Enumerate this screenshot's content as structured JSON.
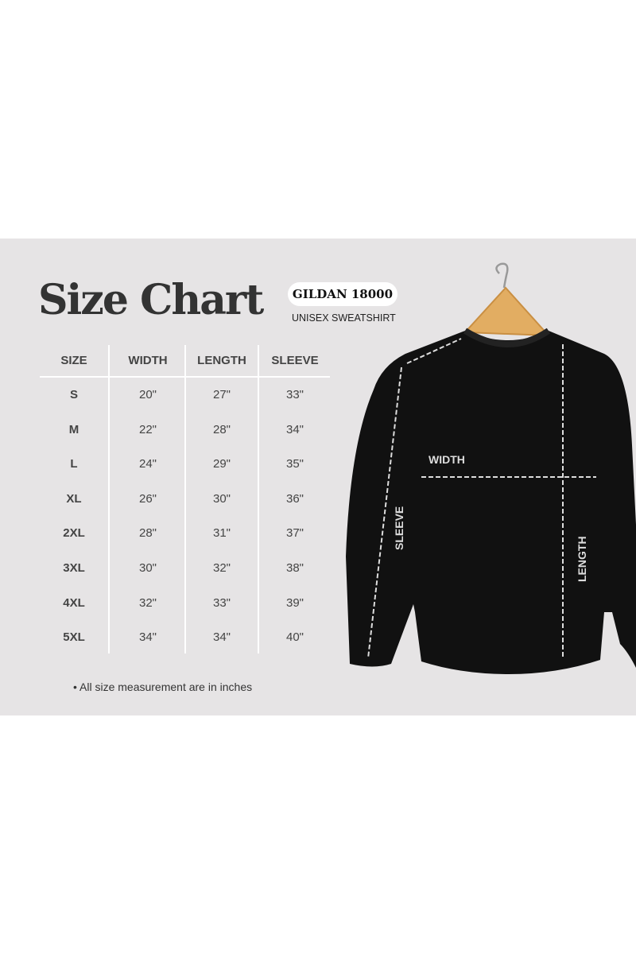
{
  "title": "Size Chart",
  "badge": "GILDAN 18000",
  "subtitle": "UNISEX SWEATSHIRT",
  "table": {
    "headers": [
      "SIZE",
      "WIDTH",
      "LENGTH",
      "SLEEVE"
    ],
    "rows": [
      [
        "S",
        "20\"",
        "27\"",
        "33\""
      ],
      [
        "M",
        "22\"",
        "28\"",
        "34\""
      ],
      [
        "L",
        "24\"",
        "29\"",
        "35\""
      ],
      [
        "XL",
        "26\"",
        "30\"",
        "36\""
      ],
      [
        "2XL",
        "28\"",
        "31\"",
        "37\""
      ],
      [
        "3XL",
        "30\"",
        "32\"",
        "38\""
      ],
      [
        "4XL",
        "32\"",
        "33\"",
        "39\""
      ],
      [
        "5XL",
        "34\"",
        "34\"",
        "40\""
      ]
    ]
  },
  "note": "• All size measurement are in inches",
  "diagram": {
    "width_label": "WIDTH",
    "sleeve_label": "SLEEVE",
    "length_label": "LENGTH"
  },
  "colors": {
    "panel": "#e6e4e5",
    "garment": "#111111",
    "hanger": "#e2ad62"
  }
}
